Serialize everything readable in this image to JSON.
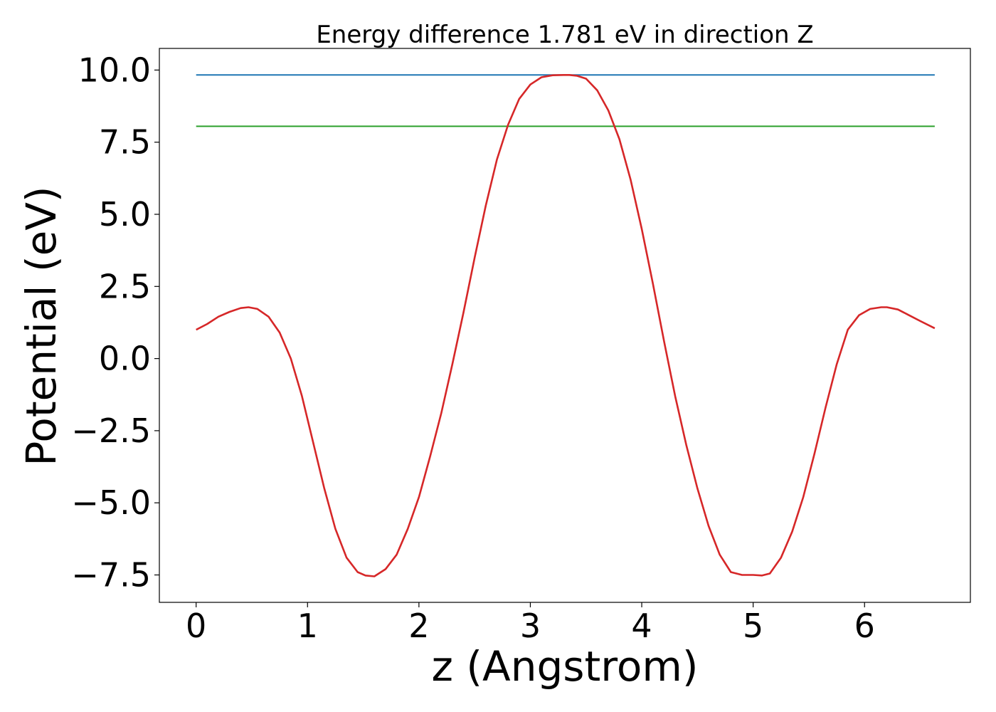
{
  "chart_data": {
    "type": "line",
    "title": "Energy difference 1.781 eV in direction Z",
    "xlabel": "z (Angstrom)",
    "ylabel": "Potential (eV)",
    "xlim": [
      -0.33,
      6.95
    ],
    "ylim": [
      -8.45,
      10.75
    ],
    "xticks": [
      0,
      1,
      2,
      3,
      4,
      5,
      6
    ],
    "xtick_labels": [
      "0",
      "1",
      "2",
      "3",
      "4",
      "5",
      "6"
    ],
    "yticks": [
      -7.5,
      -5.0,
      -2.5,
      0.0,
      2.5,
      5.0,
      7.5,
      10.0
    ],
    "ytick_labels": [
      "−7.5",
      "−5.0",
      "−2.5",
      "0.0",
      "2.5",
      "5.0",
      "7.5",
      "10.0"
    ],
    "grid": false,
    "series": [
      {
        "color": "#1f77b4",
        "x": [
          0.0,
          6.63
        ],
        "y": [
          9.83,
          9.83
        ]
      },
      {
        "color": "#2ca02c",
        "x": [
          0.0,
          6.63
        ],
        "y": [
          8.05,
          8.05
        ]
      },
      {
        "color": "#d62728",
        "x": [
          0.0,
          0.1,
          0.2,
          0.3,
          0.4,
          0.47,
          0.55,
          0.65,
          0.75,
          0.85,
          0.95,
          1.05,
          1.15,
          1.25,
          1.35,
          1.45,
          1.52,
          1.6,
          1.7,
          1.8,
          1.9,
          2.0,
          2.1,
          2.2,
          2.3,
          2.4,
          2.5,
          2.6,
          2.7,
          2.8,
          2.9,
          3.0,
          3.1,
          3.2,
          3.3,
          3.35,
          3.42,
          3.5,
          3.6,
          3.7,
          3.8,
          3.9,
          4.0,
          4.1,
          4.2,
          4.3,
          4.4,
          4.5,
          4.6,
          4.7,
          4.8,
          4.9,
          5.0,
          5.08,
          5.15,
          5.25,
          5.35,
          5.45,
          5.55,
          5.65,
          5.75,
          5.85,
          5.95,
          6.05,
          6.15,
          6.2,
          6.3,
          6.4,
          6.5,
          6.63
        ],
        "y": [
          1.0,
          1.2,
          1.45,
          1.62,
          1.75,
          1.78,
          1.72,
          1.45,
          0.9,
          0.0,
          -1.3,
          -2.9,
          -4.5,
          -5.9,
          -6.9,
          -7.4,
          -7.52,
          -7.55,
          -7.3,
          -6.8,
          -5.9,
          -4.8,
          -3.4,
          -1.9,
          -0.2,
          1.6,
          3.5,
          5.3,
          6.9,
          8.1,
          9.0,
          9.5,
          9.75,
          9.82,
          9.83,
          9.83,
          9.8,
          9.7,
          9.3,
          8.6,
          7.6,
          6.2,
          4.5,
          2.6,
          0.6,
          -1.3,
          -3.0,
          -4.5,
          -5.8,
          -6.8,
          -7.4,
          -7.5,
          -7.5,
          -7.52,
          -7.45,
          -6.9,
          -6.0,
          -4.8,
          -3.3,
          -1.7,
          -0.2,
          1.0,
          1.5,
          1.72,
          1.78,
          1.78,
          1.7,
          1.5,
          1.3,
          1.05
        ]
      }
    ]
  }
}
